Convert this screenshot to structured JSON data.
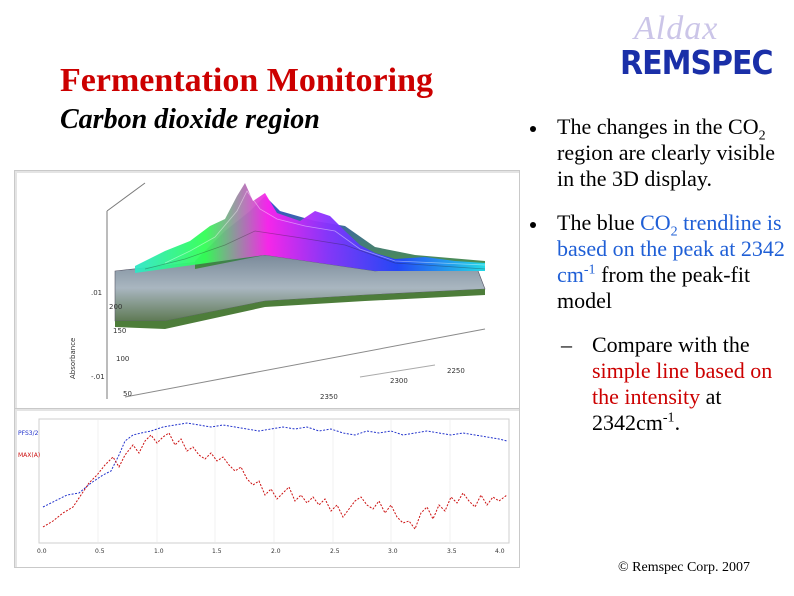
{
  "logo": {
    "script": "Aldax",
    "text": "REMSPEC"
  },
  "title": "Fermentation Monitoring",
  "subtitle": "Carbon dioxide region",
  "plot3d": {
    "ylabel": "Absorbance",
    "z_ticks": [
      ".01",
      "-.01"
    ],
    "depth_ticks": [
      "200",
      "150",
      "100",
      "50"
    ],
    "wavenumber_ticks": [
      "2350",
      "2300",
      "2250"
    ]
  },
  "plot2d": {
    "legend_blue": "PFS3/2",
    "legend_red": "MAX(A)",
    "x_ticks": [
      "0.0",
      "0.5",
      "1.0",
      "1.5",
      "2.0",
      "2.5",
      "3.0",
      "3.5",
      "4.0"
    ]
  },
  "bullets": [
    {
      "t1": "The changes in the CO",
      "t1_sub": "2",
      "t1_rest": " region are clearly visible in the 3D display."
    },
    {
      "t_pre": "The blue ",
      "t_blue": "CO",
      "t_blue_sub": "2",
      "t_blue2": "trendline is based on the peak at 2342 cm",
      "t_blue2_sup": "-1",
      "t_rest": " from the peak-fit model"
    },
    {
      "t_pre": "Compare with the ",
      "t_red": "simple line based on the intensity",
      "t_mid": " at 2342cm",
      "t_sup": "-1",
      "t_end": "."
    }
  ],
  "footer": {
    "copyright": "© Remspec Corp. 2007"
  },
  "colors": {
    "title": "#cc0000",
    "logo": "#1a2fa8",
    "blue": "#1f5fd6",
    "red": "#cc0000"
  }
}
